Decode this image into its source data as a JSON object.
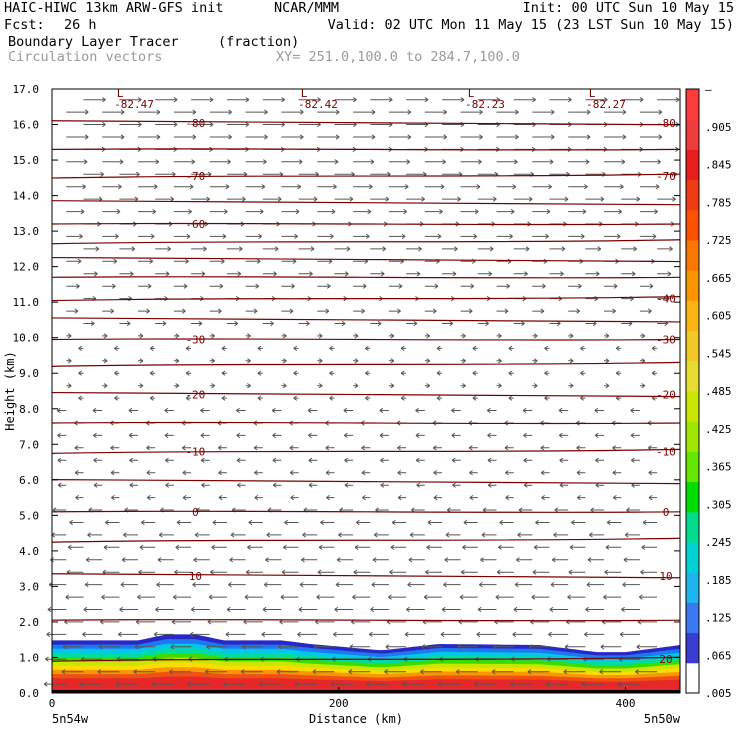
{
  "header": {
    "model_line": "HAIC-HIWC 13km ARW-GFS init",
    "org": "NCAR/MMM",
    "init": "Init: 00 UTC Sun 10 May 15",
    "fcst_label": "Fcst:",
    "fcst_value": "26 h",
    "valid": "Valid: 02 UTC Mon 11 May 15 (23 LST Sun 10 May 15)",
    "field_name": "Boundary Layer Tracer",
    "field_units": "(fraction)",
    "overlay_name": "Circulation vectors",
    "xsec_endpoints": "XY= 251.0,100.0 to 284.7,100.0"
  },
  "colors": {
    "contour": "#7a0000",
    "vector": "#555555",
    "axis": "#000000",
    "header_gray": "#9a9a9a"
  },
  "chart_data": {
    "type": "heatmap",
    "title": "Boundary Layer Tracer",
    "xlabel": "Distance (km)",
    "ylabel": "Height (km)",
    "xlim": [
      0,
      438
    ],
    "ylim": [
      0,
      17
    ],
    "x_ticks": [
      0,
      200,
      400
    ],
    "y_ticks": [
      0.0,
      1.0,
      2.0,
      3.0,
      4.0,
      5.0,
      6.0,
      7.0,
      8.0,
      9.0,
      10.0,
      11.0,
      12.0,
      13.0,
      14.0,
      15.0,
      16.0,
      17.0
    ],
    "endpoint_labels": {
      "left": "5n54w",
      "right": "5n50w"
    },
    "colorbar": {
      "labels": [
        ".005",
        ".065",
        ".125",
        ".185",
        ".245",
        ".305",
        ".365",
        ".425",
        ".485",
        ".545",
        ".605",
        ".665",
        ".725",
        ".785",
        ".845",
        ".905",
        "–"
      ],
      "colors": [
        "#ffffff",
        "#3c3cd2",
        "#3c78f0",
        "#1eb4f0",
        "#00d2d2",
        "#00dc8c",
        "#00dc00",
        "#64e600",
        "#a0e600",
        "#c8e600",
        "#e6dc32",
        "#f0c828",
        "#fab414",
        "#fa9600",
        "#fa7800",
        "#fa5000",
        "#f03c14",
        "#e61e1e",
        "#f03c3c",
        "#ff3c3c"
      ]
    },
    "bl_top_km": {
      "x": [
        0,
        60,
        80,
        100,
        120,
        160,
        180,
        230,
        270,
        340,
        380,
        400,
        438
      ],
      "y": [
        1.48,
        1.48,
        1.65,
        1.65,
        1.48,
        1.48,
        1.38,
        1.2,
        1.38,
        1.35,
        1.15,
        1.15,
        1.35
      ]
    },
    "temperature_contours": [
      {
        "level": "-82.47",
        "x": 95,
        "h": 16.85
      },
      {
        "level": "-82.42",
        "x": 270,
        "h": 16.85
      },
      {
        "level": "-82.23",
        "x": 405,
        "h": 16.85
      },
      {
        "level": "-82.27",
        "x": 535,
        "h": 16.85
      }
    ],
    "contour_lines_km": [
      16.05,
      15.3,
      14.55,
      13.8,
      13.2,
      12.7,
      12.2,
      11.7,
      11.1,
      10.5,
      9.95,
      9.25,
      8.4,
      7.6,
      6.8,
      5.95,
      5.1,
      4.3,
      3.3,
      2.05,
      0.95
    ],
    "contour_labels": [
      {
        "text": "-80",
        "side": "both",
        "h": 16.05
      },
      {
        "text": "-70",
        "side": "both",
        "h": 14.55
      },
      {
        "text": "-60",
        "side": "left",
        "h": 13.2
      },
      {
        "text": "-40",
        "side": "right",
        "h": 11.1
      },
      {
        "text": "-30",
        "side": "both",
        "h": 9.95
      },
      {
        "text": "-20",
        "side": "both",
        "h": 8.4
      },
      {
        "text": "-10",
        "side": "both",
        "h": 6.8
      },
      {
        "text": "0",
        "side": "both",
        "h": 5.1
      },
      {
        "text": "10",
        "side": "both",
        "h": 3.3
      },
      {
        "text": "20",
        "side": "right",
        "h": 0.95
      }
    ],
    "low_markers": [
      {
        "text": "L",
        "x": 95,
        "h": 17.0
      },
      {
        "text": "L",
        "x": 270,
        "h": 17.0
      },
      {
        "text": "L",
        "x": 405,
        "h": 17.0
      },
      {
        "text": "L",
        "x": 535,
        "h": 17.0
      }
    ]
  }
}
